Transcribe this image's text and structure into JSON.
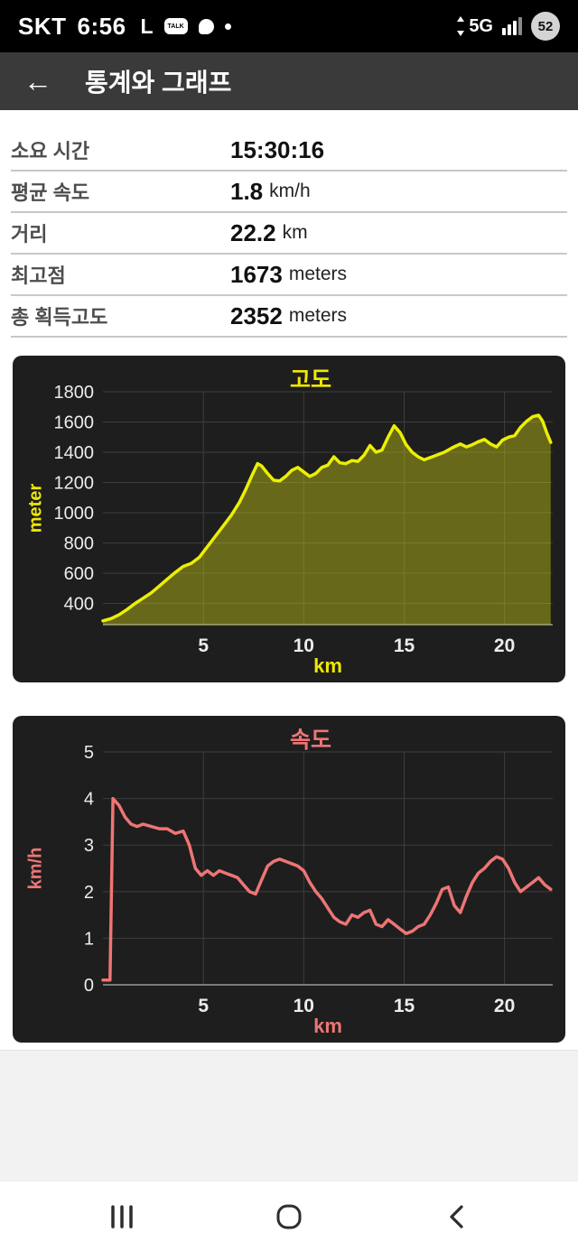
{
  "status_bar": {
    "carrier": "SKT",
    "time": "6:56",
    "line_icon": "L",
    "kakaotalk_label": "TALK",
    "network": "5G",
    "battery_percent": "52",
    "icons": [
      "line-app-icon",
      "kakaotalk-icon",
      "chat-bubble-icon",
      "notification-dot",
      "5g-network-icon",
      "signal-strength-icon",
      "battery-level-icon"
    ]
  },
  "header": {
    "back_icon": "←",
    "title": "통계와 그래프"
  },
  "stats": {
    "rows": [
      {
        "label": "소요 시간",
        "value": "15:30:16",
        "unit": ""
      },
      {
        "label": "평균 속도",
        "value": "1.8",
        "unit": "km/h"
      },
      {
        "label": "거리",
        "value": "22.2",
        "unit": "km"
      },
      {
        "label": "최고점",
        "value": "1673",
        "unit": "meters"
      },
      {
        "label": "총 획득고도",
        "value": "2352",
        "unit": "meters"
      }
    ]
  },
  "nav_bar": {
    "icons": [
      "recents-icon",
      "home-icon",
      "back-icon"
    ]
  },
  "chart_data": [
    {
      "type": "area",
      "title": "고도",
      "xlabel": "km",
      "ylabel": "meter",
      "xlim": [
        0,
        22.4
      ],
      "ylim": [
        260,
        1800
      ],
      "x_ticks": [
        5,
        10,
        15,
        20
      ],
      "y_ticks": [
        400,
        600,
        800,
        1000,
        1200,
        1400,
        1600,
        1800
      ],
      "grid": true,
      "legend": "none",
      "bg_color": "#1e1e1e",
      "line_color": "#ecf000",
      "fill_color": "rgba(195,195,25,0.45)",
      "label_color": "#f0e800",
      "tick_color": "#ececec",
      "grid_color": "#3d3d3d",
      "points": [
        [
          0,
          285
        ],
        [
          0.4,
          300
        ],
        [
          0.8,
          325
        ],
        [
          1.2,
          360
        ],
        [
          1.6,
          400
        ],
        [
          2.0,
          435
        ],
        [
          2.4,
          470
        ],
        [
          2.8,
          515
        ],
        [
          3.2,
          560
        ],
        [
          3.6,
          605
        ],
        [
          4.0,
          645
        ],
        [
          4.4,
          665
        ],
        [
          4.8,
          705
        ],
        [
          5.2,
          775
        ],
        [
          5.6,
          845
        ],
        [
          6.0,
          915
        ],
        [
          6.4,
          985
        ],
        [
          6.8,
          1070
        ],
        [
          7.1,
          1150
        ],
        [
          7.4,
          1240
        ],
        [
          7.7,
          1325
        ],
        [
          7.9,
          1310
        ],
        [
          8.2,
          1260
        ],
        [
          8.5,
          1215
        ],
        [
          8.8,
          1210
        ],
        [
          9.1,
          1240
        ],
        [
          9.4,
          1280
        ],
        [
          9.7,
          1300
        ],
        [
          10.0,
          1270
        ],
        [
          10.3,
          1240
        ],
        [
          10.6,
          1260
        ],
        [
          10.9,
          1300
        ],
        [
          11.2,
          1315
        ],
        [
          11.5,
          1370
        ],
        [
          11.8,
          1330
        ],
        [
          12.1,
          1325
        ],
        [
          12.4,
          1345
        ],
        [
          12.7,
          1340
        ],
        [
          13.0,
          1380
        ],
        [
          13.3,
          1445
        ],
        [
          13.6,
          1400
        ],
        [
          13.9,
          1415
        ],
        [
          14.2,
          1500
        ],
        [
          14.5,
          1575
        ],
        [
          14.8,
          1530
        ],
        [
          15.1,
          1450
        ],
        [
          15.4,
          1400
        ],
        [
          15.7,
          1370
        ],
        [
          16.0,
          1350
        ],
        [
          16.3,
          1365
        ],
        [
          16.6,
          1380
        ],
        [
          17.0,
          1400
        ],
        [
          17.4,
          1430
        ],
        [
          17.8,
          1455
        ],
        [
          18.1,
          1435
        ],
        [
          18.4,
          1450
        ],
        [
          18.7,
          1470
        ],
        [
          19.0,
          1485
        ],
        [
          19.3,
          1455
        ],
        [
          19.6,
          1435
        ],
        [
          19.9,
          1480
        ],
        [
          20.2,
          1500
        ],
        [
          20.5,
          1510
        ],
        [
          20.8,
          1565
        ],
        [
          21.1,
          1605
        ],
        [
          21.4,
          1635
        ],
        [
          21.7,
          1645
        ],
        [
          21.9,
          1605
        ],
        [
          22.1,
          1530
        ],
        [
          22.3,
          1465
        ]
      ]
    },
    {
      "type": "line",
      "title": "속도",
      "xlabel": "km",
      "ylabel": "km/h",
      "xlim": [
        0,
        22.4
      ],
      "ylim": [
        0,
        5
      ],
      "x_ticks": [
        5,
        10,
        15,
        20
      ],
      "y_ticks": [
        0,
        1,
        2,
        3,
        4,
        5
      ],
      "grid": true,
      "legend": "none",
      "bg_color": "#1e1e1e",
      "line_color": "#ee7575",
      "fill_color": "none",
      "label_color": "#ee7575",
      "tick_color": "#ececec",
      "grid_color": "#3d3d3d",
      "points": [
        [
          0,
          0.1
        ],
        [
          0.35,
          0.1
        ],
        [
          0.5,
          4.0
        ],
        [
          0.8,
          3.85
        ],
        [
          1.1,
          3.6
        ],
        [
          1.4,
          3.45
        ],
        [
          1.7,
          3.4
        ],
        [
          2.0,
          3.45
        ],
        [
          2.4,
          3.4
        ],
        [
          2.8,
          3.35
        ],
        [
          3.2,
          3.35
        ],
        [
          3.6,
          3.25
        ],
        [
          4.0,
          3.3
        ],
        [
          4.3,
          3.0
        ],
        [
          4.6,
          2.5
        ],
        [
          4.9,
          2.35
        ],
        [
          5.2,
          2.45
        ],
        [
          5.5,
          2.35
        ],
        [
          5.8,
          2.45
        ],
        [
          6.1,
          2.4
        ],
        [
          6.4,
          2.35
        ],
        [
          6.7,
          2.3
        ],
        [
          7.0,
          2.15
        ],
        [
          7.3,
          2.0
        ],
        [
          7.6,
          1.95
        ],
        [
          7.9,
          2.25
        ],
        [
          8.2,
          2.55
        ],
        [
          8.5,
          2.65
        ],
        [
          8.8,
          2.7
        ],
        [
          9.1,
          2.65
        ],
        [
          9.4,
          2.6
        ],
        [
          9.7,
          2.55
        ],
        [
          10.0,
          2.45
        ],
        [
          10.3,
          2.2
        ],
        [
          10.6,
          2.0
        ],
        [
          10.9,
          1.85
        ],
        [
          11.2,
          1.65
        ],
        [
          11.5,
          1.45
        ],
        [
          11.8,
          1.35
        ],
        [
          12.1,
          1.3
        ],
        [
          12.4,
          1.5
        ],
        [
          12.7,
          1.45
        ],
        [
          13.0,
          1.55
        ],
        [
          13.3,
          1.6
        ],
        [
          13.6,
          1.3
        ],
        [
          13.9,
          1.25
        ],
        [
          14.2,
          1.4
        ],
        [
          14.5,
          1.3
        ],
        [
          14.8,
          1.2
        ],
        [
          15.1,
          1.1
        ],
        [
          15.4,
          1.15
        ],
        [
          15.7,
          1.25
        ],
        [
          16.0,
          1.3
        ],
        [
          16.3,
          1.5
        ],
        [
          16.6,
          1.75
        ],
        [
          16.9,
          2.05
        ],
        [
          17.2,
          2.1
        ],
        [
          17.5,
          1.7
        ],
        [
          17.8,
          1.55
        ],
        [
          18.1,
          1.9
        ],
        [
          18.4,
          2.2
        ],
        [
          18.7,
          2.4
        ],
        [
          19.0,
          2.5
        ],
        [
          19.3,
          2.65
        ],
        [
          19.6,
          2.75
        ],
        [
          19.9,
          2.7
        ],
        [
          20.2,
          2.5
        ],
        [
          20.5,
          2.2
        ],
        [
          20.8,
          2.0
        ],
        [
          21.1,
          2.1
        ],
        [
          21.4,
          2.2
        ],
        [
          21.7,
          2.3
        ],
        [
          22.0,
          2.15
        ],
        [
          22.3,
          2.05
        ]
      ]
    }
  ]
}
